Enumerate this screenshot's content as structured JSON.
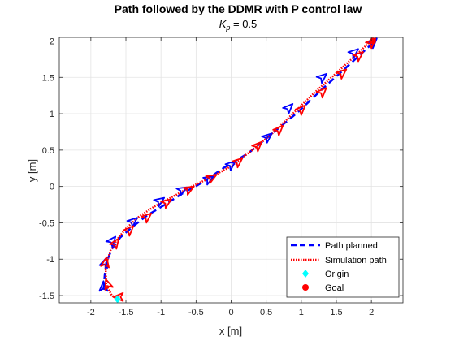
{
  "chart_data": {
    "type": "line",
    "title": "Path followed by the DDMR with P control law",
    "subtitle_symbol": "K",
    "subtitle_sub": "p",
    "subtitle_rest": " = 0.5",
    "xlabel": "x [m]",
    "ylabel": "y [m]",
    "xlim": [
      -2.45,
      2.45
    ],
    "ylim": [
      -1.6,
      2.05
    ],
    "xticks": [
      "-2",
      "-1.5",
      "-1",
      "-0.5",
      "0",
      "0.5",
      "1",
      "1.5",
      "2"
    ],
    "yticks": [
      "-1.5",
      "-1",
      "-0.5",
      "0",
      "0.5",
      "1",
      "1.5",
      "2"
    ],
    "grid": true,
    "legend_position": "bottom-right",
    "series": [
      {
        "name": "Path planned",
        "style": "dashed",
        "color": "#0000ff",
        "x": [
          -1.82,
          -1.8,
          -1.78,
          -1.7,
          -1.58,
          -1.4,
          -1.2,
          -0.96,
          -0.7,
          -0.4,
          -0.1,
          0.25,
          0.6,
          0.95,
          1.3,
          1.6,
          1.85,
          2.05
        ],
        "y": [
          -1.42,
          -1.2,
          -1.05,
          -0.86,
          -0.7,
          -0.55,
          -0.4,
          -0.26,
          -0.1,
          0.06,
          0.26,
          0.46,
          0.74,
          1.02,
          1.34,
          1.6,
          1.82,
          2.0
        ]
      },
      {
        "name": "Simulation path",
        "style": "dotted",
        "color": "#ff0000",
        "x": [
          -1.62,
          -1.7,
          -1.78,
          -1.79,
          -1.72,
          -1.62,
          -1.5,
          -1.32,
          -1.1,
          -0.85,
          -0.6,
          -0.3,
          0.0,
          0.3,
          0.6,
          0.9,
          1.2,
          1.5,
          1.75,
          1.95,
          2.05
        ],
        "y": [
          -1.55,
          -1.5,
          -1.35,
          -1.1,
          -0.88,
          -0.72,
          -0.58,
          -0.42,
          -0.28,
          -0.15,
          -0.02,
          0.12,
          0.28,
          0.5,
          0.74,
          1.02,
          1.3,
          1.56,
          1.78,
          1.96,
          2.03
        ]
      },
      {
        "name": "Origin",
        "style": "marker",
        "color": "#00ffff",
        "x": [
          -1.62
        ],
        "y": [
          -1.55
        ]
      },
      {
        "name": "Goal",
        "style": "marker",
        "color": "#ff0000",
        "x": [
          2.02
        ],
        "y": [
          2.0
        ]
      }
    ],
    "robot_planned": [
      [
        -1.82,
        -1.38,
        90
      ],
      [
        -1.8,
        -1.05,
        70
      ],
      [
        -1.7,
        -0.75,
        50
      ],
      [
        -1.4,
        -0.48,
        40
      ],
      [
        -1.02,
        -0.2,
        35
      ],
      [
        -0.7,
        -0.05,
        30
      ],
      [
        -0.32,
        0.1,
        30
      ],
      [
        0.0,
        0.3,
        40
      ],
      [
        0.52,
        0.68,
        40
      ],
      [
        0.82,
        1.08,
        45
      ],
      [
        1.3,
        1.5,
        40
      ],
      [
        1.75,
        1.84,
        40
      ],
      [
        2.02,
        1.98,
        45
      ]
    ],
    "robot_sim": [
      [
        -1.6,
        -1.52,
        180
      ],
      [
        -1.76,
        -1.35,
        110
      ],
      [
        -1.79,
        -1.05,
        80
      ],
      [
        -1.65,
        -0.78,
        55
      ],
      [
        -1.45,
        -0.6,
        45
      ],
      [
        -1.2,
        -0.42,
        40
      ],
      [
        -0.92,
        -0.22,
        35
      ],
      [
        -0.6,
        -0.04,
        30
      ],
      [
        -0.28,
        0.12,
        30
      ],
      [
        0.1,
        0.34,
        40
      ],
      [
        0.38,
        0.56,
        45
      ],
      [
        0.68,
        0.78,
        45
      ],
      [
        1.0,
        1.06,
        45
      ],
      [
        1.3,
        1.3,
        45
      ],
      [
        1.58,
        1.56,
        40
      ],
      [
        1.82,
        1.8,
        40
      ],
      [
        2.0,
        1.98,
        45
      ]
    ]
  }
}
